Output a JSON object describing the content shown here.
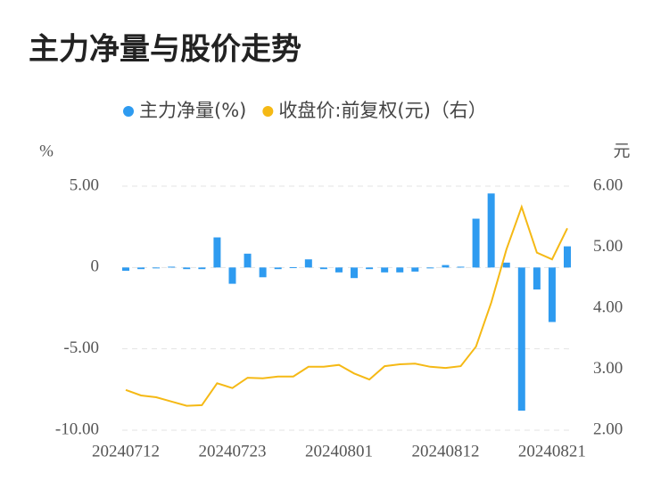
{
  "chart_data": {
    "type": "bar_line",
    "title": "主力净量与股价走势",
    "y_label": "%",
    "y2_label": "元",
    "categories": [
      "20240712",
      null,
      null,
      null,
      null,
      null,
      null,
      "20240723",
      null,
      null,
      null,
      null,
      null,
      null,
      "20240801",
      null,
      null,
      null,
      null,
      null,
      null,
      "20240812",
      null,
      null,
      null,
      null,
      null,
      null,
      "20240821",
      null
    ],
    "series": [
      {
        "name": "主力净量(%)",
        "type": "bar",
        "color": "#2e9bf0",
        "values": [
          -0.2,
          -0.1,
          -0.05,
          0.05,
          -0.1,
          -0.1,
          1.85,
          -1.0,
          0.85,
          -0.6,
          -0.1,
          0.02,
          0.5,
          -0.1,
          -0.3,
          -0.65,
          -0.1,
          -0.3,
          -0.3,
          -0.25,
          -0.05,
          0.15,
          0.05,
          3.0,
          4.55,
          0.3,
          -8.8,
          -1.35,
          -3.35,
          1.3
        ]
      },
      {
        "name": "收盘价:前复权(元)（右）",
        "type": "line",
        "axis": "y2",
        "color": "#f5b915",
        "values": [
          2.66,
          2.57,
          2.54,
          2.47,
          2.4,
          2.41,
          2.77,
          2.69,
          2.86,
          2.85,
          2.88,
          2.88,
          3.04,
          3.04,
          3.07,
          2.93,
          2.83,
          3.05,
          3.08,
          3.09,
          3.04,
          3.02,
          3.05,
          3.37,
          4.09,
          4.96,
          5.66,
          4.91,
          4.8,
          5.31
        ]
      }
    ],
    "ylim": [
      -10,
      5
    ],
    "yticks": [
      {
        "value": 5,
        "label": "5.00"
      },
      0,
      {
        "value": -5,
        "label": "-5.00"
      },
      {
        "value": -10,
        "label": "-10.00"
      }
    ],
    "y2lim": [
      2,
      6
    ],
    "y2ticks": [
      {
        "value": 6,
        "label": "6.00"
      },
      {
        "value": 5,
        "label": "5.00"
      },
      {
        "value": 4,
        "label": "4.00"
      },
      {
        "value": 3,
        "label": "3.00"
      },
      {
        "value": 2,
        "label": "2.00"
      }
    ],
    "grid": true
  }
}
